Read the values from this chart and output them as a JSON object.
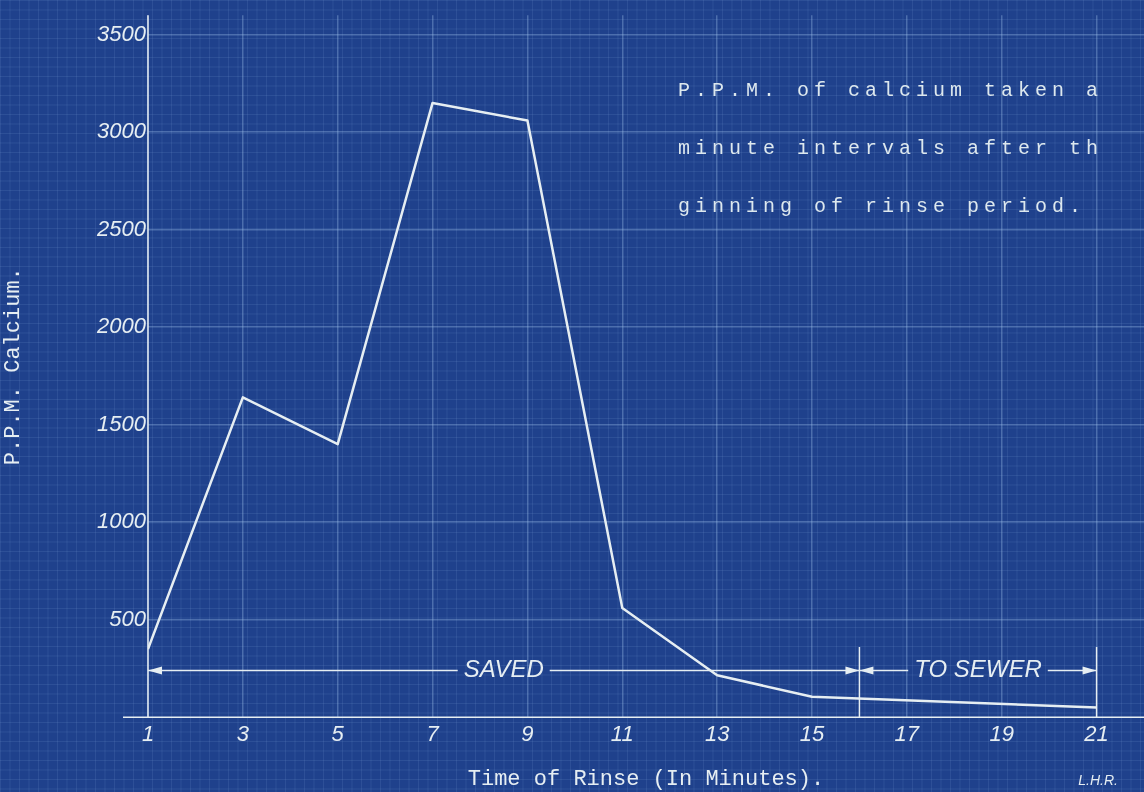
{
  "chart_data": {
    "type": "line",
    "title": "P.P.M. of calcium taken a\nminute intervals after th\nginning of rinse period.",
    "xlabel": "Time of Rinse (In Minutes).",
    "ylabel": "P.P.M. Calcium.",
    "x": [
      1,
      3,
      5,
      7,
      9,
      11,
      13,
      15,
      21
    ],
    "series": [
      {
        "color": "#e6eef2",
        "values": [
          350,
          1640,
          1400,
          3150,
          3060,
          560,
          215,
          105,
          50
        ]
      }
    ],
    "xlim": [
      1,
      22
    ],
    "xticks": [
      1,
      3,
      5,
      7,
      9,
      11,
      13,
      15,
      17,
      19,
      21
    ],
    "ylim": [
      0,
      3600
    ],
    "yticks": [
      500,
      1000,
      1500,
      2000,
      2500,
      3000,
      3500
    ],
    "ref_lines": [
      {
        "axis": "x",
        "value": 16
      },
      {
        "axis": "x",
        "value": 21
      }
    ],
    "annotations": [
      {
        "text": "SAVED",
        "x": 16,
        "y": 240
      },
      {
        "text": "TO SEWER",
        "x": 21,
        "y": 240
      },
      "L.H.R."
    ],
    "grid": true,
    "legend": false,
    "marker": "none",
    "line_style": "solid"
  }
}
